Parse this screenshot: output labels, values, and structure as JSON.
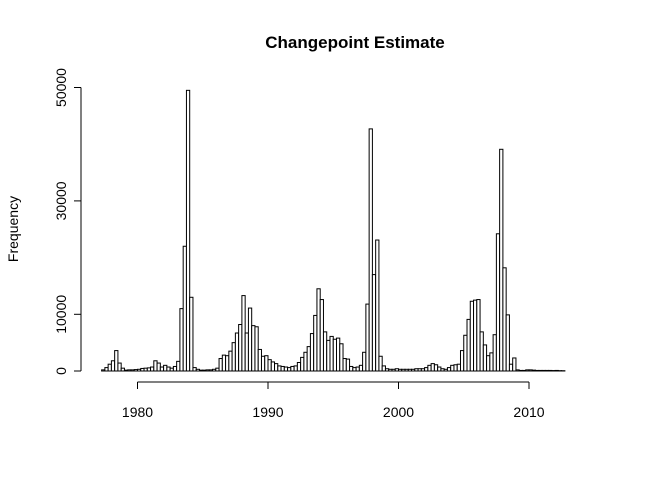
{
  "chart_data": {
    "type": "bar",
    "title": "Changepoint Estimate",
    "xlabel": "",
    "ylabel": "Frequency",
    "xlim": [
      1977.0,
      2016.0
    ],
    "ylim": [
      0,
      50000
    ],
    "x_ticks": [
      1980,
      1990,
      2000,
      2010
    ],
    "y_ticks": [
      0,
      10000,
      30000,
      50000
    ],
    "bin_width": 0.25,
    "bin_start": 1977.25,
    "values": [
      200,
      600,
      1200,
      1800,
      3600,
      1400,
      500,
      150,
      200,
      200,
      250,
      300,
      450,
      500,
      550,
      700,
      1800,
      1400,
      700,
      1000,
      700,
      500,
      800,
      1700,
      11000,
      22000,
      49500,
      13000,
      600,
      300,
      150,
      150,
      200,
      200,
      300,
      500,
      2200,
      2800,
      2700,
      3500,
      5000,
      6700,
      8200,
      13300,
      6700,
      11100,
      8000,
      7800,
      3800,
      2600,
      2700,
      2000,
      1600,
      1300,
      900,
      800,
      700,
      600,
      800,
      900,
      1500,
      2400,
      3300,
      4300,
      6600,
      9800,
      14500,
      12600,
      6900,
      5400,
      6100,
      5600,
      5800,
      4800,
      2200,
      2100,
      800,
      600,
      700,
      1000,
      3300,
      11800,
      42700,
      17000,
      23100,
      2600,
      900,
      400,
      300,
      300,
      400,
      300,
      300,
      300,
      300,
      300,
      400,
      400,
      400,
      600,
      1000,
      1300,
      1100,
      700,
      400,
      300,
      600,
      1000,
      1100,
      1200,
      3600,
      6300,
      9100,
      12300,
      12500,
      12600,
      6900,
      4600,
      2700,
      3200,
      6400,
      24200,
      39100,
      18200,
      9900,
      1200,
      2300,
      200,
      100,
      100,
      200,
      200,
      150,
      100,
      100,
      100,
      100,
      100,
      80,
      100,
      60,
      50
    ]
  }
}
